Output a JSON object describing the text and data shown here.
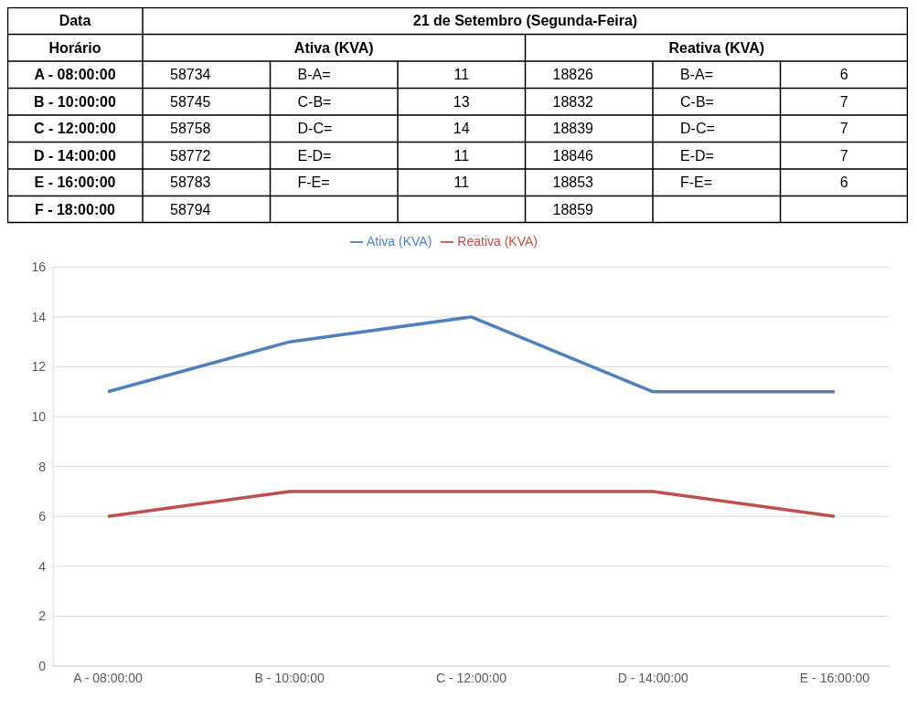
{
  "chart_data": [
    {
      "type": "heatmap",
      "title": "21 de Setembro (Segunda-Feira)",
      "xlabel": "Data",
      "ylabel": "Horário",
      "annotations": [
        "Ativa (KVA)",
        "Reativa (KVA)"
      ],
      "categories": [
        null,
        null,
        null,
        null,
        null,
        null
      ],
      "y_categories": [
        "A - 08:00:00",
        "B - 10:00:00",
        "C - 12:00:00",
        "D - 14:00:00",
        "E - 16:00:00",
        "F - 18:00:00"
      ],
      "cells": [
        [
          58734,
          null,
          11,
          18826,
          null,
          6
        ],
        [
          58745,
          null,
          13,
          18832,
          null,
          7
        ],
        [
          58758,
          null,
          14,
          18839,
          null,
          7
        ],
        [
          58772,
          null,
          11,
          18846,
          null,
          7
        ],
        [
          58783,
          null,
          11,
          18853,
          null,
          6
        ],
        [
          58794,
          null,
          null,
          18859,
          null,
          null
        ]
      ],
      "cell_labels": [
        [
          "58734",
          "B-A=",
          "11",
          "18826",
          "B-A=",
          "6"
        ],
        [
          "58745",
          "C-B=",
          "13",
          "18832",
          "C-B=",
          "7"
        ],
        [
          "58758",
          "D-C=",
          "14",
          "18839",
          "D-C=",
          "7"
        ],
        [
          "58772",
          "E-D=",
          "11",
          "18846",
          "E-D=",
          "7"
        ],
        [
          "58783",
          "F-E=",
          "11",
          "18853",
          "F-E=",
          "6"
        ],
        [
          "58794",
          null,
          null,
          "18859",
          null,
          null
        ]
      ]
    },
    {
      "type": "line",
      "categories": [
        "A - 08:00:00",
        "B - 10:00:00",
        "C - 12:00:00",
        "D - 14:00:00",
        "E - 16:00:00"
      ],
      "series": [
        {
          "name": "Ativa (KVA)",
          "color": "#4f81bd",
          "values": [
            11,
            13,
            14,
            11,
            11
          ]
        },
        {
          "name": "Reativa (KVA)",
          "color": "#c0504d",
          "values": [
            6,
            7,
            7,
            7,
            6
          ]
        }
      ],
      "ylim": [
        0,
        16
      ],
      "yticks": [
        0,
        2,
        4,
        6,
        8,
        10,
        12,
        14,
        16
      ],
      "grid": "y",
      "legend": "top"
    }
  ]
}
